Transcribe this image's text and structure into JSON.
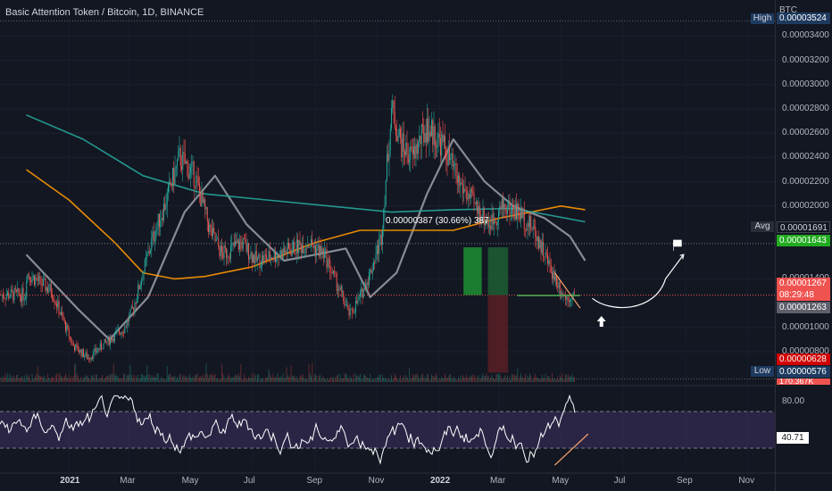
{
  "header": {
    "symbol_title": "Basic Attention Token / Bitcoin, 1D, BINANCE",
    "currency": "BTC"
  },
  "price_axis": {
    "ticks": [
      "0.00003400",
      "0.00003200",
      "0.00003000",
      "0.00002800",
      "0.00002600",
      "0.00002400",
      "0.00002200",
      "0.00002000",
      "0.00001400",
      "0.00001000",
      "0.00000800"
    ]
  },
  "tags": {
    "high_label": "High",
    "high_value": "0.00003524",
    "avg_label": "Avg",
    "avg_value": "0.00001691",
    "ma_value": "0.00001643",
    "last_price": "0.00001267",
    "countdown": "08:29:48",
    "prev_value": "0.00001263",
    "red_value": "0.00000628",
    "low_label": "Low",
    "low_value": "0.00000576",
    "cut_value": "170.367K"
  },
  "measure_label": "0.00000387 (30.66%) 387",
  "rsi": {
    "level_label": "80.00",
    "value": "40.71"
  },
  "time_axis": {
    "labels": [
      "2021",
      "Mar",
      "May",
      "Jul",
      "Sep",
      "Nov",
      "2022",
      "Mar",
      "May",
      "Jul",
      "Sep",
      "Nov"
    ]
  },
  "colors": {
    "background": "#131722",
    "bull": "#26a69a",
    "bear": "#ef5350",
    "ma_fast": "#9598a1",
    "ma_orange": "#ff9800",
    "ma_teal": "#26a69a",
    "rsi_band": "#7e57c2",
    "last_price": "#ef5350",
    "ma_tag": "#22ab1f",
    "avg_line": "#787b86"
  },
  "chart_data": {
    "type": "candlestick",
    "title": "Basic Attention Token / Bitcoin, 1D, BINANCE",
    "price_unit": "BTC",
    "x_range": [
      "2020-12",
      "2022-11"
    ],
    "ylim": [
      5.5e-06,
      3.55e-05
    ],
    "series": [
      {
        "name": "",
        "approx_close_path": {
          "dates": [
            "2020-11-20",
            "2020-12-15",
            "2021-01-05",
            "2021-01-20",
            "2021-02-10",
            "2021-02-25",
            "2021-03-05",
            "2021-03-25",
            "2021-04-05",
            "2021-04-20",
            "2021-05-05",
            "2021-05-20",
            "2021-06-01",
            "2021-06-20",
            "2021-07-05",
            "2021-07-25",
            "2021-08-10",
            "2021-08-25",
            "2021-09-10",
            "2021-09-25",
            "2021-10-05",
            "2021-10-15",
            "2021-10-25",
            "2021-11-05",
            "2021-11-15",
            "2021-11-25",
            "2021-12-05",
            "2021-12-20",
            "2022-01-05",
            "2022-01-20",
            "2022-02-05",
            "2022-02-20",
            "2022-03-05",
            "2022-03-20",
            "2022-04-05",
            "2022-04-20",
            "2022-05-05",
            "2022-05-15"
          ],
          "values": [
            1.45e-05,
            1.3e-05,
            8.5e-06,
            7.5e-06,
            9e-06,
            1e-05,
            1.15e-05,
            1.75e-05,
            2e-05,
            2.4e-05,
            2.25e-05,
            1.8e-05,
            1.6e-05,
            1.7e-05,
            1.55e-05,
            1.6e-05,
            1.65e-05,
            1.7e-05,
            1.6e-05,
            1.3e-05,
            1.1e-05,
            1.25e-05,
            1.45e-05,
            1.75e-05,
            2.8e-05,
            2.5e-05,
            2.4e-05,
            2.65e-05,
            2.5e-05,
            2.2e-05,
            2e-05,
            1.85e-05,
            2e-05,
            1.95e-05,
            1.8e-05,
            1.5e-05,
            1.25e-05,
            1.27e-05
          ]
        }
      }
    ],
    "moving_averages": [
      {
        "name": "",
        "color": "#9598a1",
        "dates": [
          "2020-11-20",
          "2021-01-10",
          "2021-02-10",
          "2021-03-20",
          "2021-04-25",
          "2021-05-25",
          "2021-06-25",
          "2021-08-01",
          "2021-09-01",
          "2021-10-01",
          "2021-10-25",
          "2021-11-20",
          "2021-12-20",
          "2022-01-15",
          "2022-02-15",
          "2022-03-15",
          "2022-04-15",
          "2022-05-10",
          "2022-05-25"
        ],
        "values": [
          1.6e-05,
          1.15e-05,
          9e-06,
          1.25e-05,
          1.95e-05,
          2.25e-05,
          1.85e-05,
          1.55e-05,
          1.6e-05,
          1.65e-05,
          1.25e-05,
          1.45e-05,
          2.1e-05,
          2.55e-05,
          2.2e-05,
          2e-05,
          1.9e-05,
          1.75e-05,
          1.55e-05
        ]
      },
      {
        "name": "",
        "color": "#ff9800",
        "dates": [
          "2020-11-20",
          "2021-01-01",
          "2021-02-15",
          "2021-03-15",
          "2021-04-15",
          "2021-05-15",
          "2021-07-01",
          "2021-09-01",
          "2021-10-15",
          "2021-12-01",
          "2022-01-15",
          "2022-03-01",
          "2022-04-01",
          "2022-05-01",
          "2022-05-25"
        ],
        "values": [
          2.3e-05,
          2.05e-05,
          1.7e-05,
          1.45e-05,
          1.4e-05,
          1.42e-05,
          1.5e-05,
          1.7e-05,
          1.8e-05,
          1.8e-05,
          1.8e-05,
          1.9e-05,
          1.95e-05,
          2e-05,
          1.97e-05
        ]
      },
      {
        "name": "",
        "color": "#26a69a",
        "dates": [
          "2020-11-20",
          "2021-01-15",
          "2021-03-15",
          "2021-05-15",
          "2021-07-15",
          "2021-09-15",
          "2021-11-15",
          "2022-01-15",
          "2022-03-15",
          "2022-05-25"
        ],
        "values": [
          2.75e-05,
          2.55e-05,
          2.25e-05,
          2.1e-05,
          2.05e-05,
          2e-05,
          1.95e-05,
          1.97e-05,
          1.98e-05,
          1.87e-05
        ]
      }
    ],
    "reference_levels": {
      "high": 3.524e-05,
      "avg": 1.691e-05,
      "ma_tag": 1.643e-05,
      "last": 1.267e-05,
      "prev": 1.263e-05,
      "red": 6.28e-06,
      "low": 5.76e-06
    },
    "measure": {
      "change": 3.87e-06,
      "percent": 30.66
    },
    "rsi": {
      "upper_level": 80.0,
      "lower_level": 20.0,
      "last": 40.71
    }
  }
}
